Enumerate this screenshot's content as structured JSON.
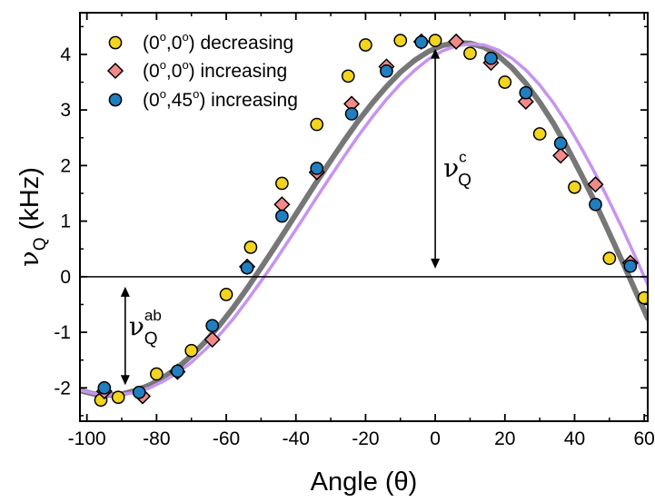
{
  "chart_data": {
    "type": "scatter",
    "xlabel": "Angle (θ)",
    "ylabel": {
      "main": "ν",
      "sub": "Q",
      "unit": " (kHz)"
    },
    "xlim": [
      -102,
      61
    ],
    "ylim": [
      -2.6,
      4.75
    ],
    "x_ticks": [
      -100,
      -80,
      -60,
      -40,
      -20,
      0,
      20,
      40,
      60
    ],
    "y_ticks": [
      -2,
      -1,
      0,
      1,
      2,
      3,
      4
    ],
    "grid": false,
    "legend_position": "top-left",
    "colors": {
      "decreasing_fill": "#f2d51c",
      "increasing_fill": "#f28a8a",
      "increasing45_fill": "#1f7fc0",
      "fit_gray": "#777777",
      "fit_violet": "#c794f0"
    },
    "series": [
      {
        "name": "(0°,0°) decreasing",
        "legend": {
          "main": "(0",
          "sup1": "o",
          "mid": ",0",
          "sup2": "o",
          "end": ") decreasing"
        },
        "marker": "circle",
        "x": [
          -96,
          -91,
          -80,
          -70,
          -60,
          -53,
          -44,
          -34,
          -25,
          -20,
          -10,
          0,
          10,
          20,
          30,
          40,
          50,
          60
        ],
        "y": [
          -2.22,
          -2.17,
          -1.75,
          -1.33,
          -0.32,
          0.53,
          1.68,
          2.74,
          3.61,
          4.17,
          4.25,
          4.25,
          4.02,
          3.5,
          2.57,
          1.61,
          0.33,
          -0.38
        ]
      },
      {
        "name": "(0°,0°) increasing",
        "legend": {
          "main": "(0",
          "sup1": "o",
          "mid": ",0",
          "sup2": "o",
          "end": ") increasing"
        },
        "marker": "diamond",
        "x": [
          -95,
          -84,
          -74,
          -64,
          -54,
          -44,
          -34,
          -24,
          -14,
          -4,
          6,
          16,
          26,
          36,
          46,
          56
        ],
        "y": [
          -2.06,
          -2.15,
          -1.71,
          -1.13,
          0.18,
          1.3,
          1.88,
          3.11,
          3.78,
          4.23,
          4.23,
          3.85,
          3.15,
          2.18,
          1.66,
          0.25
        ]
      },
      {
        "name": "(0°,45°) increasing",
        "legend": {
          "main": "(0",
          "sup1": "o",
          "mid": ",45",
          "sup2": "o",
          "end": ") increasing"
        },
        "marker": "circle",
        "x": [
          -95,
          -85,
          -74,
          -64,
          -54,
          -44,
          -34,
          -24,
          -14,
          -4,
          16,
          26,
          36,
          46,
          56
        ],
        "y": [
          -2.0,
          -2.08,
          -1.7,
          -0.88,
          0.16,
          1.09,
          1.95,
          2.93,
          3.7,
          4.22,
          3.93,
          3.31,
          2.4,
          1.3,
          0.19
        ]
      }
    ],
    "fits": [
      {
        "color": "gray",
        "x": [
          -102,
          -98,
          -94,
          -90,
          -86,
          -82,
          -78,
          -74,
          -70,
          -66,
          -62,
          -58,
          -54,
          -50,
          -46,
          -42,
          -38,
          -34,
          -30,
          -26,
          -22,
          -18,
          -14,
          -10,
          -6,
          -2,
          2,
          6,
          10,
          14,
          18,
          22,
          26,
          30,
          34,
          38,
          42,
          46,
          50,
          54,
          58,
          61
        ],
        "y": [
          -2.05,
          -2.11,
          -2.13,
          -2.11,
          -2.05,
          -1.95,
          -1.81,
          -1.64,
          -1.42,
          -1.17,
          -0.88,
          -0.56,
          -0.21,
          0.16,
          0.54,
          0.93,
          1.32,
          1.71,
          2.09,
          2.46,
          2.81,
          3.13,
          3.42,
          3.68,
          3.89,
          4.05,
          4.16,
          4.21,
          4.2,
          4.13,
          3.98,
          3.76,
          3.48,
          3.14,
          2.75,
          2.31,
          1.83,
          1.32,
          0.78,
          0.23,
          -0.33,
          -0.75
        ]
      },
      {
        "color": "violet",
        "x": [
          -102,
          -98,
          -94,
          -90,
          -86,
          -82,
          -78,
          -74,
          -70,
          -66,
          -62,
          -58,
          -54,
          -50,
          -46,
          -42,
          -38,
          -34,
          -30,
          -26,
          -22,
          -18,
          -14,
          -10,
          -6,
          -2,
          2,
          6,
          10,
          14,
          18,
          22,
          26,
          30,
          34,
          38,
          42,
          46,
          50,
          54,
          58,
          61
        ],
        "y": [
          -2.04,
          -2.1,
          -2.13,
          -2.12,
          -2.08,
          -2.0,
          -1.88,
          -1.73,
          -1.54,
          -1.31,
          -1.05,
          -0.76,
          -0.43,
          -0.08,
          0.28,
          0.66,
          1.04,
          1.43,
          1.81,
          2.18,
          2.54,
          2.88,
          3.19,
          3.47,
          3.71,
          3.91,
          4.06,
          4.15,
          4.19,
          4.17,
          4.08,
          3.93,
          3.72,
          3.45,
          3.12,
          2.74,
          2.31,
          1.85,
          1.35,
          0.83,
          0.28,
          -0.14
        ]
      }
    ],
    "hline_y": 0,
    "annotations": [
      {
        "type": "double-arrow",
        "x": 0,
        "y_from": 0,
        "y_to": 4.25,
        "label": {
          "main": "ν",
          "sub": "Q",
          "sup": "c"
        }
      },
      {
        "type": "double-arrow",
        "x": -89,
        "y_from": 0,
        "y_to": -2.13,
        "label": {
          "main": "ν",
          "sub": "Q",
          "sup": "ab"
        }
      }
    ]
  }
}
